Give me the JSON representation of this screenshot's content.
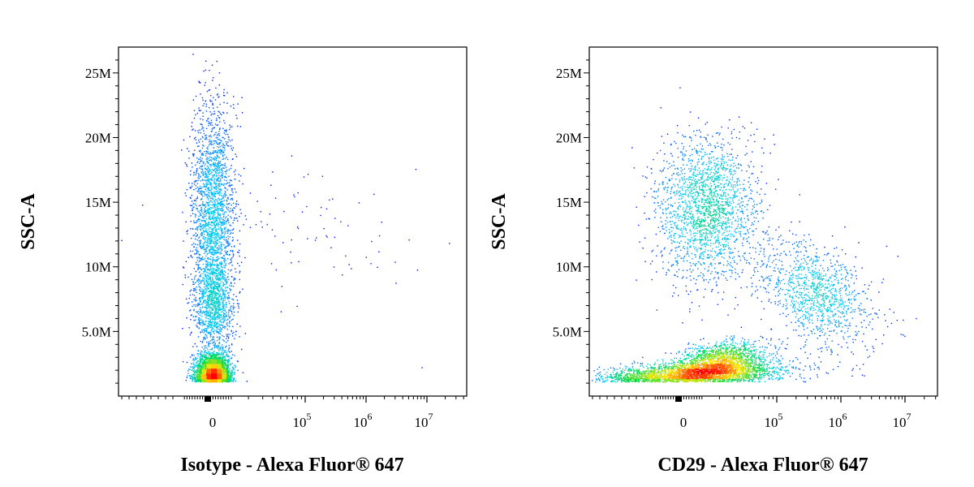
{
  "chart_data": [
    {
      "type": "scatter",
      "xlabel": "Isotype - Alexa Fluor® 647",
      "ylabel": "SSC-A",
      "y_ticks": [
        {
          "value": 5000000,
          "label": "5.0M"
        },
        {
          "value": 10000000,
          "label": "10M"
        },
        {
          "value": 15000000,
          "label": "15M"
        },
        {
          "value": 20000000,
          "label": "20M"
        },
        {
          "value": 25000000,
          "label": "25M"
        }
      ],
      "x_ticks": [
        {
          "label": "0",
          "sup": ""
        },
        {
          "label": "10",
          "sup": "5"
        },
        {
          "label": "10",
          "sup": "6"
        },
        {
          "label": "10",
          "sup": "7"
        }
      ],
      "ylim": [
        0,
        27000000
      ],
      "x_scale": "biexponential",
      "populations": [
        {
          "name": "",
          "center_x": 0,
          "center_y": 1800000,
          "count": 2600
        },
        {
          "name": "",
          "center_x": 0,
          "center_y": 14000000,
          "count": 2200
        },
        {
          "name": "",
          "center_x": 0,
          "center_y": 7000000,
          "count": 900
        },
        {
          "name": "",
          "center_x": 100000,
          "center_y": 13000000,
          "count": 90
        }
      ]
    },
    {
      "type": "scatter",
      "xlabel": "CD29 - Alexa Fluor® 647",
      "ylabel": "SSC-A",
      "y_ticks": [
        {
          "value": 5000000,
          "label": "5.0M"
        },
        {
          "value": 10000000,
          "label": "10M"
        },
        {
          "value": 15000000,
          "label": "15M"
        },
        {
          "value": 20000000,
          "label": "20M"
        },
        {
          "value": 25000000,
          "label": "25M"
        }
      ],
      "x_ticks": [
        {
          "label": "0",
          "sup": ""
        },
        {
          "label": "10",
          "sup": "5"
        },
        {
          "label": "10",
          "sup": "6"
        },
        {
          "label": "10",
          "sup": "7"
        }
      ],
      "ylim": [
        0,
        27000000
      ],
      "x_scale": "biexponential",
      "populations": [
        {
          "name": "",
          "center_x": 10000,
          "center_y": 1700000,
          "count": 2600
        },
        {
          "name": "",
          "center_x": 40000,
          "center_y": 2800000,
          "count": 1400
        },
        {
          "name": "",
          "center_x": 25000,
          "center_y": 14500000,
          "count": 2000
        },
        {
          "name": "",
          "center_x": 400000,
          "center_y": 8000000,
          "count": 1100
        }
      ]
    }
  ]
}
